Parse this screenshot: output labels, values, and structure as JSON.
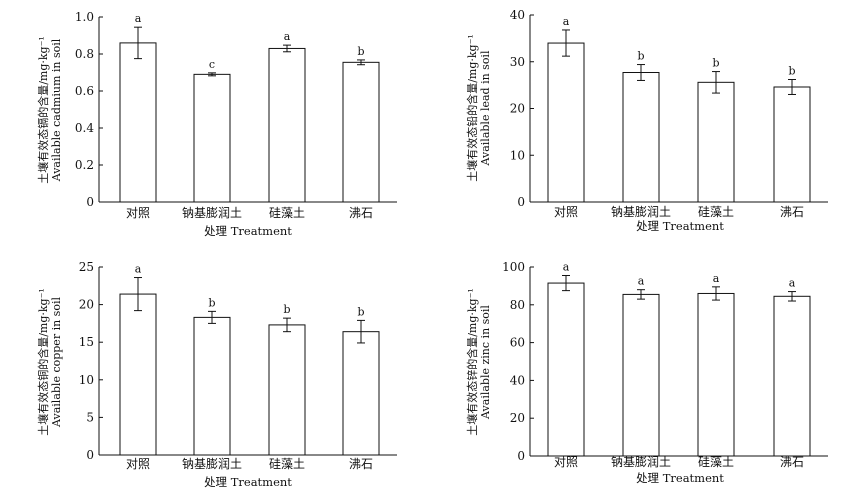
{
  "chart_data": [
    {
      "type": "bar",
      "categories": [
        "对照",
        "钠基膨润土",
        "硅藻土",
        "沸石"
      ],
      "values": [
        0.86,
        0.69,
        0.83,
        0.755
      ],
      "errors": [
        0.085,
        0.008,
        0.018,
        0.013
      ],
      "significance": [
        "a",
        "c",
        "a",
        "b"
      ],
      "xlabel": "处理 Treatment",
      "ylabel": [
        "土壤有效态镉的含量/mg·kg⁻¹",
        "Available cadmium in soil"
      ],
      "ylim": [
        0,
        1.0
      ],
      "yticks": [
        "0",
        "0.2",
        "0.4",
        "0.6",
        "0.8",
        "1.0"
      ]
    },
    {
      "type": "bar",
      "categories": [
        "对照",
        "钠基膨润土",
        "硅藻土",
        "沸石"
      ],
      "values": [
        34.0,
        27.7,
        25.6,
        24.6
      ],
      "errors": [
        2.8,
        1.7,
        2.3,
        1.6
      ],
      "significance": [
        "a",
        "b",
        "b",
        "b"
      ],
      "xlabel": "处理 Treatment",
      "ylabel": [
        "土壤有效态铅的含量/mg·kg⁻¹",
        "Available lead in soil"
      ],
      "ylim": [
        0,
        40
      ],
      "yticks": [
        "0",
        "10",
        "20",
        "30",
        "40"
      ]
    },
    {
      "type": "bar",
      "categories": [
        "对照",
        "钠基膨润土",
        "硅藻土",
        "沸石"
      ],
      "values": [
        21.4,
        18.3,
        17.3,
        16.4
      ],
      "errors": [
        2.2,
        0.8,
        0.9,
        1.5
      ],
      "significance": [
        "a",
        "b",
        "b",
        "b"
      ],
      "xlabel": "处理 Treatment",
      "ylabel": [
        "土壤有效态铜的含量/mg·kg⁻¹",
        "Available copper in soil"
      ],
      "ylim": [
        0,
        25
      ],
      "yticks": [
        "0",
        "5",
        "10",
        "15",
        "20",
        "25"
      ]
    },
    {
      "type": "bar",
      "categories": [
        "对照",
        "钠基膨润土",
        "硅藻土",
        "沸石"
      ],
      "values": [
        91.5,
        85.5,
        86.0,
        84.5
      ],
      "errors": [
        4.0,
        2.5,
        3.5,
        2.5
      ],
      "significance": [
        "a",
        "a",
        "a",
        "a"
      ],
      "xlabel": "处理 Treatment",
      "ylabel": [
        "土壤有效态锌的含量/mg·kg⁻¹",
        "Available zinc in soil"
      ],
      "ylim": [
        0,
        100
      ],
      "yticks": [
        "0",
        "20",
        "40",
        "60",
        "80",
        "100"
      ]
    }
  ]
}
